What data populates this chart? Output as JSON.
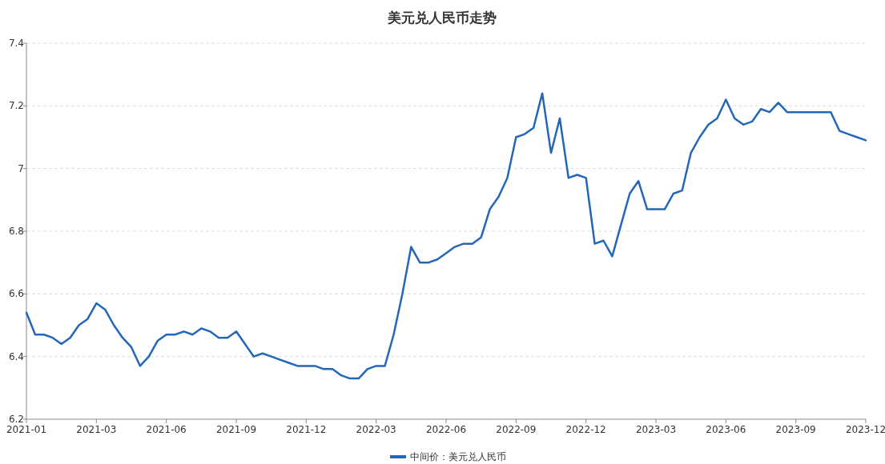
{
  "chart_data": {
    "type": "line",
    "title": "美元兑人民币走势",
    "categories": [
      "2021-01",
      null,
      null,
      null,
      null,
      null,
      null,
      null,
      "2021-03",
      null,
      null,
      null,
      null,
      null,
      null,
      null,
      "2021-06",
      null,
      null,
      null,
      null,
      null,
      null,
      null,
      "2021-09",
      null,
      null,
      null,
      null,
      null,
      null,
      null,
      "2021-12",
      null,
      null,
      null,
      null,
      null,
      null,
      null,
      "2022-03",
      null,
      null,
      null,
      null,
      null,
      null,
      null,
      "2022-06",
      null,
      null,
      null,
      null,
      null,
      null,
      null,
      "2022-09",
      null,
      null,
      null,
      null,
      null,
      null,
      null,
      "2022-12",
      null,
      null,
      null,
      null,
      null,
      null,
      null,
      "2023-03",
      null,
      null,
      null,
      null,
      null,
      null,
      null,
      "2023-06",
      null,
      null,
      null,
      null,
      null,
      null,
      null,
      "2023-09",
      null,
      null,
      null,
      null,
      null,
      null,
      null,
      "2023-12"
    ],
    "series": [
      {
        "name": "中间价：美元兑人民币",
        "color": "#2466b8",
        "values": [
          6.54,
          6.47,
          6.47,
          6.46,
          6.44,
          6.46,
          6.5,
          6.52,
          6.57,
          6.55,
          6.5,
          6.46,
          6.43,
          6.37,
          6.4,
          6.45,
          6.47,
          6.47,
          6.48,
          6.47,
          6.49,
          6.48,
          6.46,
          6.46,
          6.48,
          6.44,
          6.4,
          6.41,
          6.4,
          6.39,
          6.38,
          6.37,
          6.37,
          6.37,
          6.36,
          6.36,
          6.34,
          6.33,
          6.33,
          6.36,
          6.37,
          6.37,
          6.47,
          6.6,
          6.75,
          6.7,
          6.7,
          6.71,
          6.73,
          6.75,
          6.76,
          6.76,
          6.78,
          6.87,
          6.91,
          6.97,
          7.1,
          7.11,
          7.13,
          7.24,
          7.05,
          7.16,
          6.97,
          6.98,
          6.97,
          6.76,
          6.77,
          6.72,
          6.82,
          6.92,
          6.96,
          6.87,
          6.87,
          6.87,
          6.92,
          6.93,
          7.05,
          7.1,
          7.14,
          7.16,
          7.22,
          7.16,
          7.14,
          7.15,
          7.19,
          7.18,
          7.21,
          7.18,
          7.18,
          7.18,
          7.18,
          7.18,
          7.18,
          7.12,
          7.11,
          7.1,
          7.09
        ]
      }
    ],
    "ylim": [
      6.2,
      7.4
    ],
    "yticks": [
      6.2,
      6.4,
      6.6,
      6.8,
      7,
      7.2,
      7.4
    ],
    "grid": "y",
    "legend": "bottom",
    "line_style": "solid",
    "marker": "none"
  }
}
